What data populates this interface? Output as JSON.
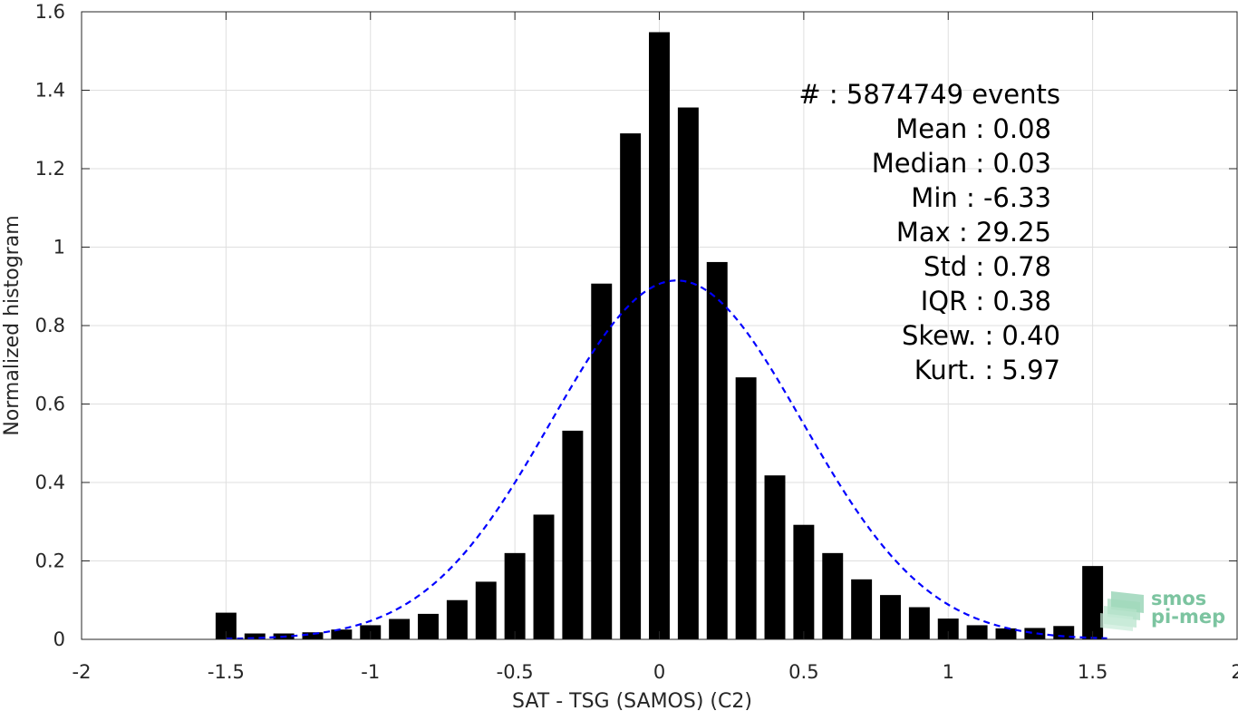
{
  "chart_data": {
    "type": "bar",
    "xlabel": "SAT - TSG (SAMOS) (C2)",
    "ylabel": "Normalized histogram",
    "xlim": [
      -2,
      2
    ],
    "ylim": [
      0,
      1.6
    ],
    "xticks": [
      -2,
      -1.5,
      -1,
      -0.5,
      0,
      0.5,
      1,
      1.5,
      2
    ],
    "xtick_labels": [
      "-2",
      "-1.5",
      "-1",
      "-0.5",
      "0",
      "0.5",
      "1",
      "1.5",
      "2"
    ],
    "yticks": [
      0,
      0.2,
      0.4,
      0.6,
      0.8,
      1,
      1.2,
      1.4,
      1.6
    ],
    "ytick_labels": [
      "0",
      "0.2",
      "0.4",
      "0.6",
      "0.8",
      "1",
      "1.2",
      "1.4",
      "1.6"
    ],
    "grid": true,
    "bar_color": "#000000",
    "bins": [
      -1.5,
      -1.4,
      -1.3,
      -1.2,
      -1.1,
      -1.0,
      -0.9,
      -0.8,
      -0.7,
      -0.6,
      -0.5,
      -0.4,
      -0.3,
      -0.2,
      -0.1,
      0.0,
      0.1,
      0.2,
      0.3,
      0.4,
      0.5,
      0.6,
      0.7,
      0.8,
      0.9,
      1.0,
      1.1,
      1.2,
      1.3,
      1.4,
      1.5
    ],
    "values": [
      0.068,
      0.015,
      0.015,
      0.018,
      0.025,
      0.036,
      0.052,
      0.065,
      0.1,
      0.147,
      0.22,
      0.318,
      0.532,
      0.907,
      1.29,
      1.548,
      1.356,
      0.962,
      0.668,
      0.418,
      0.292,
      0.22,
      0.153,
      0.113,
      0.082,
      0.053,
      0.036,
      0.028,
      0.029,
      0.034,
      0.187
    ],
    "fit_curve": {
      "type": "gaussian",
      "mean": 0.06,
      "std": 0.435,
      "peak": 0.915,
      "x_range": [
        -1.5,
        1.55
      ],
      "color": "#0000ff",
      "style": "dashed"
    },
    "annotations": [
      "#  : 5874749 events",
      "Mean : 0.08",
      "Median : 0.03",
      "Min : -6.33",
      "Max : 29.25",
      "Std : 0.78",
      "IQR : 0.38",
      "Skew. : 0.40",
      "Kurt. : 5.97"
    ]
  },
  "logo": {
    "line1": "smos",
    "line2": "pi-mep",
    "color": "#7cc4a0"
  }
}
